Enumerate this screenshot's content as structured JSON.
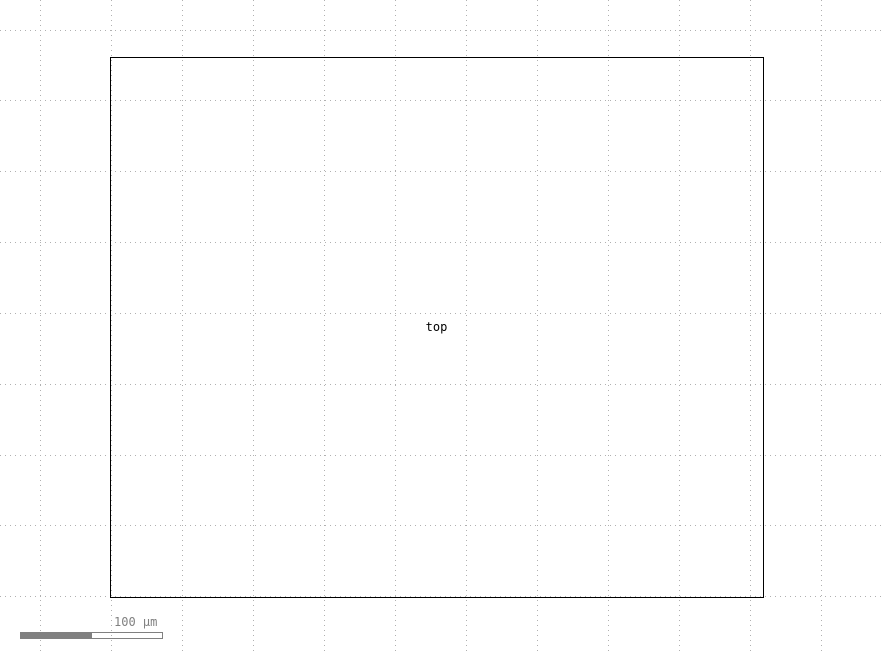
{
  "layout_view": {
    "cell": {
      "name": "top"
    },
    "scale_bar": {
      "label": "100 µm"
    },
    "grid": {
      "visible": true,
      "style": "dotted",
      "color": "#b0b0b0"
    },
    "colors": {
      "background": "#ffffff",
      "cell_outline": "#000000",
      "scale_bar_fill": "#808080"
    }
  }
}
